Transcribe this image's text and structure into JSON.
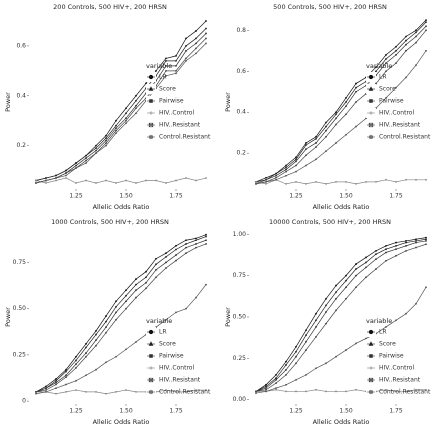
{
  "chart_data": [
    {
      "type": "line",
      "title": "200 Controls, 500 HIV+, 200 HRSN",
      "x_label": "Allelic Odds Ratio",
      "y_label": "Power",
      "legend_title": "variable",
      "legend": "right",
      "grid": false,
      "x": [
        1.05,
        1.1,
        1.15,
        1.2,
        1.25,
        1.3,
        1.35,
        1.4,
        1.45,
        1.5,
        1.55,
        1.6,
        1.65,
        1.7,
        1.75,
        1.8,
        1.85,
        1.9
      ],
      "xlim": [
        1.02,
        1.93
      ],
      "xticks": [
        1.25,
        {
          "value": 1.5,
          "label": "1.50"
        },
        1.75
      ],
      "ylim": [
        0.03,
        0.72
      ],
      "yticks": [
        0.2,
        0.4,
        0.6
      ],
      "series": [
        {
          "name": "LR",
          "color": "#111111",
          "marker": "circle",
          "values": [
            0.06,
            0.07,
            0.08,
            0.1,
            0.13,
            0.16,
            0.2,
            0.24,
            0.3,
            0.35,
            0.4,
            0.45,
            0.5,
            0.55,
            0.56,
            0.63,
            0.66,
            0.7
          ]
        },
        {
          "name": "Score",
          "color": "#222222",
          "marker": "triangle",
          "values": [
            0.06,
            0.07,
            0.08,
            0.1,
            0.13,
            0.16,
            0.19,
            0.23,
            0.28,
            0.33,
            0.38,
            0.43,
            0.48,
            0.54,
            0.54,
            0.6,
            0.63,
            0.67
          ]
        },
        {
          "name": "Pairwise",
          "color": "#333333",
          "marker": "square",
          "values": [
            0.05,
            0.06,
            0.07,
            0.09,
            0.12,
            0.15,
            0.18,
            0.22,
            0.27,
            0.31,
            0.36,
            0.41,
            0.46,
            0.52,
            0.52,
            0.58,
            0.61,
            0.65
          ]
        },
        {
          "name": "HIV..Control",
          "color": "#888888",
          "marker": "plus",
          "values": [
            0.06,
            0.05,
            0.06,
            0.07,
            0.05,
            0.06,
            0.05,
            0.06,
            0.05,
            0.06,
            0.05,
            0.06,
            0.06,
            0.05,
            0.06,
            0.07,
            0.06,
            0.07
          ]
        },
        {
          "name": "HIV..Resistant",
          "color": "#444444",
          "marker": "boxx",
          "values": [
            0.05,
            0.06,
            0.07,
            0.09,
            0.11,
            0.14,
            0.17,
            0.21,
            0.26,
            0.3,
            0.35,
            0.39,
            0.44,
            0.5,
            0.5,
            0.55,
            0.59,
            0.63
          ]
        },
        {
          "name": "Control.Resistant",
          "color": "#555555",
          "marker": "circlex",
          "values": [
            0.05,
            0.06,
            0.07,
            0.08,
            0.11,
            0.13,
            0.17,
            0.2,
            0.25,
            0.29,
            0.33,
            0.38,
            0.43,
            0.48,
            0.49,
            0.54,
            0.57,
            0.61
          ]
        }
      ]
    },
    {
      "type": "line",
      "title": "500 Controls, 500 HIV+, 200 HRSN",
      "x_label": "Allelic Odds Ratio",
      "y_label": "Power",
      "legend_title": "variable",
      "legend": "right",
      "grid": false,
      "x": [
        1.05,
        1.1,
        1.15,
        1.2,
        1.25,
        1.3,
        1.35,
        1.4,
        1.45,
        1.5,
        1.55,
        1.6,
        1.65,
        1.7,
        1.75,
        1.8,
        1.85,
        1.9
      ],
      "xlim": [
        1.02,
        1.93
      ],
      "xticks": [
        1.25,
        {
          "value": 1.5,
          "label": "1.50"
        },
        1.75
      ],
      "ylim": [
        0.03,
        0.87
      ],
      "yticks": [
        0.2,
        0.4,
        0.6,
        0.8
      ],
      "series": [
        {
          "name": "LR",
          "color": "#111111",
          "marker": "circle",
          "values": [
            0.06,
            0.08,
            0.1,
            0.14,
            0.18,
            0.25,
            0.28,
            0.35,
            0.4,
            0.47,
            0.54,
            0.57,
            0.62,
            0.68,
            0.72,
            0.77,
            0.8,
            0.85
          ]
        },
        {
          "name": "Score",
          "color": "#222222",
          "marker": "triangle",
          "values": [
            0.06,
            0.07,
            0.1,
            0.13,
            0.17,
            0.24,
            0.27,
            0.33,
            0.39,
            0.45,
            0.52,
            0.55,
            0.6,
            0.66,
            0.7,
            0.75,
            0.79,
            0.84
          ]
        },
        {
          "name": "Pairwise",
          "color": "#333333",
          "marker": "square",
          "values": [
            0.05,
            0.07,
            0.09,
            0.12,
            0.16,
            0.22,
            0.25,
            0.31,
            0.37,
            0.43,
            0.5,
            0.53,
            0.58,
            0.64,
            0.68,
            0.73,
            0.77,
            0.82
          ]
        },
        {
          "name": "HIV..Control",
          "color": "#888888",
          "marker": "plus",
          "values": [
            0.06,
            0.05,
            0.07,
            0.05,
            0.06,
            0.05,
            0.06,
            0.05,
            0.06,
            0.06,
            0.05,
            0.06,
            0.06,
            0.07,
            0.06,
            0.07,
            0.07,
            0.07
          ]
        },
        {
          "name": "HIV..Resistant",
          "color": "#444444",
          "marker": "boxx",
          "values": [
            0.05,
            0.06,
            0.08,
            0.11,
            0.14,
            0.19,
            0.23,
            0.28,
            0.34,
            0.39,
            0.45,
            0.49,
            0.54,
            0.6,
            0.64,
            0.7,
            0.74,
            0.8
          ]
        },
        {
          "name": "Control.Resistant",
          "color": "#555555",
          "marker": "circlex",
          "values": [
            0.05,
            0.06,
            0.07,
            0.09,
            0.11,
            0.14,
            0.17,
            0.21,
            0.25,
            0.29,
            0.33,
            0.37,
            0.42,
            0.47,
            0.52,
            0.57,
            0.63,
            0.7
          ]
        }
      ]
    },
    {
      "type": "line",
      "title": "1000 Controls, 500 HIV+, 200 HRSN",
      "x_label": "Allelic Odds Ratio",
      "y_label": "Power",
      "legend_title": "variable",
      "legend": "bottom right",
      "grid": false,
      "x": [
        1.05,
        1.1,
        1.15,
        1.2,
        1.25,
        1.3,
        1.35,
        1.4,
        1.45,
        1.5,
        1.55,
        1.6,
        1.65,
        1.7,
        1.75,
        1.8,
        1.85,
        1.9
      ],
      "xlim": [
        1.02,
        1.93
      ],
      "xticks": [
        1.25,
        {
          "value": 1.5,
          "label": "1.50"
        },
        1.75
      ],
      "ylim": [
        -0.01,
        0.92
      ],
      "yticks": [
        0,
        0.25,
        {
          "value": 0.5,
          "label": "0.50"
        },
        0.75
      ],
      "series": [
        {
          "name": "LR",
          "color": "#111111",
          "marker": "circle",
          "values": [
            0.05,
            0.08,
            0.12,
            0.17,
            0.24,
            0.31,
            0.38,
            0.46,
            0.54,
            0.6,
            0.66,
            0.7,
            0.77,
            0.8,
            0.84,
            0.87,
            0.88,
            0.9
          ]
        },
        {
          "name": "Score",
          "color": "#222222",
          "marker": "triangle",
          "values": [
            0.05,
            0.07,
            0.11,
            0.16,
            0.22,
            0.29,
            0.36,
            0.43,
            0.51,
            0.57,
            0.63,
            0.67,
            0.74,
            0.78,
            0.82,
            0.85,
            0.87,
            0.89
          ]
        },
        {
          "name": "Pairwise",
          "color": "#333333",
          "marker": "square",
          "values": [
            0.05,
            0.07,
            0.1,
            0.14,
            0.2,
            0.26,
            0.33,
            0.4,
            0.48,
            0.54,
            0.6,
            0.64,
            0.71,
            0.75,
            0.79,
            0.83,
            0.85,
            0.87
          ]
        },
        {
          "name": "HIV..Control",
          "color": "#888888",
          "marker": "plus",
          "values": [
            0.05,
            0.05,
            0.04,
            0.05,
            0.06,
            0.05,
            0.05,
            0.04,
            0.05,
            0.06,
            0.05,
            0.05,
            0.05,
            0.06,
            0.05,
            0.05,
            0.06,
            0.06
          ]
        },
        {
          "name": "HIV..Resistant",
          "color": "#444444",
          "marker": "boxx",
          "values": [
            0.05,
            0.06,
            0.09,
            0.13,
            0.18,
            0.24,
            0.3,
            0.37,
            0.44,
            0.5,
            0.56,
            0.61,
            0.67,
            0.72,
            0.76,
            0.8,
            0.83,
            0.85
          ]
        },
        {
          "name": "Control.Resistant",
          "color": "#555555",
          "marker": "circlex",
          "values": [
            0.04,
            0.05,
            0.07,
            0.09,
            0.11,
            0.14,
            0.17,
            0.21,
            0.24,
            0.28,
            0.32,
            0.36,
            0.4,
            0.44,
            0.48,
            0.5,
            0.56,
            0.63
          ]
        }
      ]
    },
    {
      "type": "line",
      "title": "10000 Controls, 500 HIV+, 200 HRSN",
      "x_label": "Allelic Odds Ratio",
      "y_label": "Power",
      "legend_title": "variable",
      "legend": "bottom right",
      "grid": false,
      "x": [
        1.05,
        1.1,
        1.15,
        1.2,
        1.25,
        1.3,
        1.35,
        1.4,
        1.45,
        1.5,
        1.55,
        1.6,
        1.65,
        1.7,
        1.75,
        1.8,
        1.85,
        1.9
      ],
      "xlim": [
        1.02,
        1.93
      ],
      "xticks": [
        1.25,
        {
          "value": 1.5,
          "label": "1.50"
        },
        1.75
      ],
      "ylim": [
        -0.02,
        1.02
      ],
      "yticks": [
        {
          "value": 0,
          "label": "0.00"
        },
        0.25,
        {
          "value": 0.5,
          "label": "0.50"
        },
        0.75,
        {
          "value": 1,
          "label": "1.00"
        }
      ],
      "series": [
        {
          "name": "LR",
          "color": "#111111",
          "marker": "circle",
          "values": [
            0.05,
            0.09,
            0.15,
            0.23,
            0.32,
            0.42,
            0.52,
            0.61,
            0.69,
            0.75,
            0.82,
            0.86,
            0.9,
            0.93,
            0.95,
            0.96,
            0.97,
            0.98
          ]
        },
        {
          "name": "Score",
          "color": "#222222",
          "marker": "triangle",
          "values": [
            0.05,
            0.08,
            0.13,
            0.21,
            0.29,
            0.39,
            0.48,
            0.57,
            0.65,
            0.72,
            0.79,
            0.83,
            0.88,
            0.91,
            0.93,
            0.95,
            0.96,
            0.97
          ]
        },
        {
          "name": "Pairwise",
          "color": "#333333",
          "marker": "square",
          "values": [
            0.05,
            0.07,
            0.12,
            0.18,
            0.26,
            0.35,
            0.44,
            0.53,
            0.61,
            0.68,
            0.75,
            0.8,
            0.85,
            0.89,
            0.91,
            0.93,
            0.95,
            0.96
          ]
        },
        {
          "name": "HIV..Control",
          "color": "#888888",
          "marker": "plus",
          "values": [
            0.05,
            0.05,
            0.06,
            0.05,
            0.05,
            0.05,
            0.06,
            0.05,
            0.05,
            0.05,
            0.06,
            0.05,
            0.05,
            0.06,
            0.05,
            0.05,
            0.06,
            0.06
          ]
        },
        {
          "name": "HIV..Resistant",
          "color": "#444444",
          "marker": "boxx",
          "values": [
            0.05,
            0.06,
            0.1,
            0.15,
            0.22,
            0.3,
            0.38,
            0.46,
            0.54,
            0.61,
            0.68,
            0.74,
            0.79,
            0.84,
            0.87,
            0.9,
            0.92,
            0.94
          ]
        },
        {
          "name": "Control.Resistant",
          "color": "#555555",
          "marker": "circlex",
          "values": [
            0.04,
            0.05,
            0.07,
            0.09,
            0.12,
            0.15,
            0.19,
            0.22,
            0.26,
            0.3,
            0.34,
            0.37,
            0.4,
            0.44,
            0.48,
            0.52,
            0.58,
            0.68
          ]
        }
      ]
    }
  ]
}
